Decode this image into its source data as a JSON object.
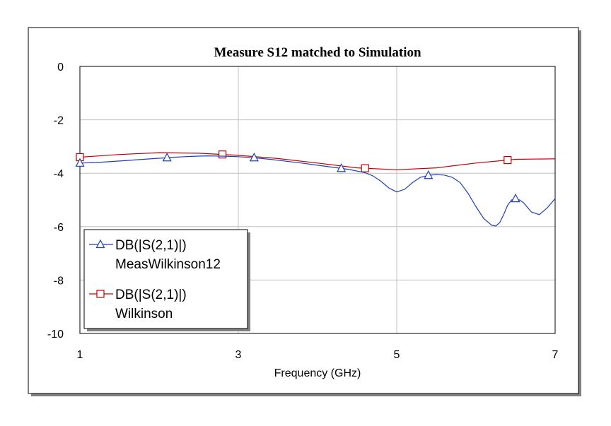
{
  "chart_data": {
    "type": "line",
    "title": "Measure S12 matched to Simulation",
    "xlabel": "Frequency (GHz)",
    "ylabel": "",
    "xlim": [
      1,
      7
    ],
    "ylim": [
      -10,
      0
    ],
    "x_ticks": [
      1,
      3,
      5,
      7
    ],
    "y_ticks": [
      0,
      -2,
      -4,
      -6,
      -8,
      -10
    ],
    "grid": true,
    "legend_position": "bottom-left",
    "series": [
      {
        "name": "DB(|S(2,1)|)",
        "source": "MeasWilkinson12",
        "color": "#1f3fb7",
        "marker": "triangle",
        "marker_x": [
          1,
          2.1,
          3.2,
          4.3,
          5.4,
          6.5
        ],
        "x": [
          1,
          1.2,
          1.4,
          1.6,
          1.8,
          2.0,
          2.2,
          2.4,
          2.6,
          2.8,
          3.0,
          3.2,
          3.4,
          3.6,
          3.8,
          4.0,
          4.2,
          4.4,
          4.6,
          4.7,
          4.8,
          4.9,
          5.0,
          5.1,
          5.2,
          5.3,
          5.4,
          5.5,
          5.6,
          5.7,
          5.8,
          5.9,
          6.0,
          6.1,
          6.2,
          6.25,
          6.3,
          6.35,
          6.4,
          6.45,
          6.5,
          6.55,
          6.6,
          6.7,
          6.8,
          6.9,
          7.0
        ],
        "values": [
          -3.62,
          -3.6,
          -3.56,
          -3.52,
          -3.48,
          -3.44,
          -3.4,
          -3.37,
          -3.35,
          -3.36,
          -3.38,
          -3.42,
          -3.48,
          -3.55,
          -3.62,
          -3.7,
          -3.78,
          -3.86,
          -3.98,
          -4.1,
          -4.3,
          -4.55,
          -4.7,
          -4.6,
          -4.35,
          -4.15,
          -4.08,
          -4.05,
          -4.07,
          -4.15,
          -4.35,
          -4.75,
          -5.25,
          -5.7,
          -5.95,
          -5.98,
          -5.85,
          -5.55,
          -5.2,
          -5.0,
          -4.95,
          -5.0,
          -5.1,
          -5.45,
          -5.55,
          -5.3,
          -4.95
        ]
      },
      {
        "name": "DB(|S(2,1)|)",
        "source": "Wilkinson",
        "color": "#c00000",
        "marker": "square",
        "marker_x": [
          1,
          2.8,
          4.6,
          6.4
        ],
        "x": [
          1,
          1.5,
          2.0,
          2.5,
          3.0,
          3.5,
          4.0,
          4.5,
          5.0,
          5.5,
          6.0,
          6.5,
          7.0
        ],
        "values": [
          -3.4,
          -3.3,
          -3.23,
          -3.25,
          -3.33,
          -3.45,
          -3.62,
          -3.8,
          -3.87,
          -3.8,
          -3.62,
          -3.48,
          -3.46
        ]
      }
    ]
  }
}
